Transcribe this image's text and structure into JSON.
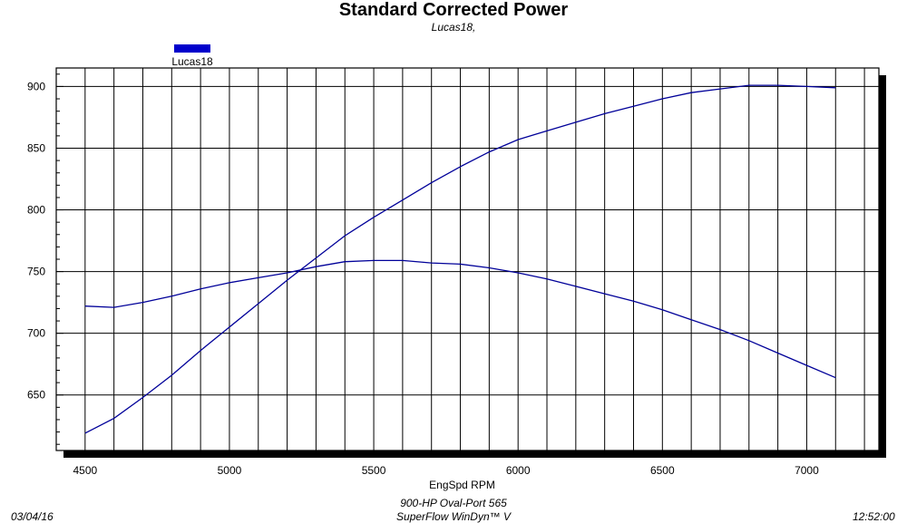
{
  "header": {
    "title": "Standard Corrected Power",
    "subtitle": "Lucas18,"
  },
  "legend": {
    "label": "Lucas18",
    "color": "#0000cc"
  },
  "footer": {
    "date": "03/04/16",
    "engine": "900-HP Oval-Port 565",
    "software": "SuperFlow WinDyn™ V",
    "time": "12:52:00"
  },
  "chart_data": {
    "type": "line",
    "title": "Standard Corrected Power",
    "subtitle": "Lucas18,",
    "xlabel": "EngSpd RPM",
    "ylabel": "",
    "xlim": [
      4400,
      7250
    ],
    "ylim": [
      605,
      915
    ],
    "xticks": [
      4500,
      5000,
      5500,
      6000,
      6500,
      7000
    ],
    "yticks": [
      650,
      700,
      750,
      800,
      850,
      900
    ],
    "grid": true,
    "legend_position": "top-left",
    "line_color": "#000099",
    "series": [
      {
        "name": "Lucas18",
        "x": [
          4500,
          4600,
          4700,
          4800,
          4900,
          5000,
          5100,
          5200,
          5300,
          5400,
          5500,
          5600,
          5700,
          5800,
          5900,
          6000,
          6100,
          6200,
          6300,
          6400,
          6500,
          6600,
          6700,
          6800,
          6900,
          7000,
          7100
        ],
        "values": [
          619,
          631,
          648,
          666,
          686,
          705,
          724,
          743,
          761,
          779,
          794,
          808,
          822,
          835,
          847,
          857,
          864,
          871,
          878,
          884,
          890,
          895,
          898,
          901,
          901,
          900,
          899
        ]
      },
      {
        "name": "",
        "x": [
          4500,
          4600,
          4700,
          4800,
          4900,
          5000,
          5100,
          5200,
          5300,
          5400,
          5500,
          5600,
          5700,
          5800,
          5900,
          6000,
          6100,
          6200,
          6300,
          6400,
          6500,
          6600,
          6700,
          6800,
          6900,
          7000,
          7100
        ],
        "values": [
          722,
          721,
          725,
          730,
          736,
          741,
          745,
          749,
          754,
          758,
          759,
          759,
          757,
          756,
          753,
          749,
          744,
          738,
          732,
          726,
          719,
          711,
          703,
          694,
          684,
          674,
          664
        ]
      }
    ]
  }
}
